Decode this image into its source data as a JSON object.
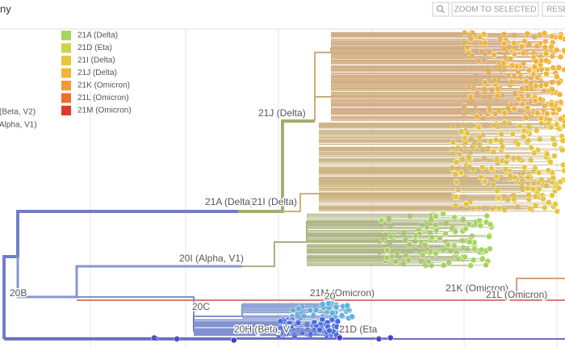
{
  "header": {
    "title": "ny",
    "buttons": [
      "ZOOM TO SELECTED",
      "RESE"
    ]
  },
  "legend": {
    "items": [
      {
        "label": "21A (Delta)",
        "color": "#a6d55e"
      },
      {
        "label": "21D (Eta)",
        "color": "#cdd34c"
      },
      {
        "label": "21I (Delta)",
        "color": "#e6c63c"
      },
      {
        "label": "21J (Delta)",
        "color": "#f1b53a"
      },
      {
        "label": "21K (Omicron)",
        "color": "#f29838"
      },
      {
        "label": "21L (Omicron)",
        "color": "#ee6c2e"
      },
      {
        "label": "21M (Omicron)",
        "color": "#e2382b"
      }
    ],
    "partial_items": [
      "(Beta, V2)",
      "Alpha, V1)"
    ]
  },
  "tree": {
    "branch_labels": [
      "21J (Delta)",
      "21A (Delta)",
      "21I (Delta)",
      "20I (Alpha, V1)",
      "20B",
      "20C",
      "21M (Omicron)",
      "20",
      "21K (Omicron)",
      "21L (Omicron)",
      "20H (Beta, V",
      "21D (Eta"
    ]
  }
}
